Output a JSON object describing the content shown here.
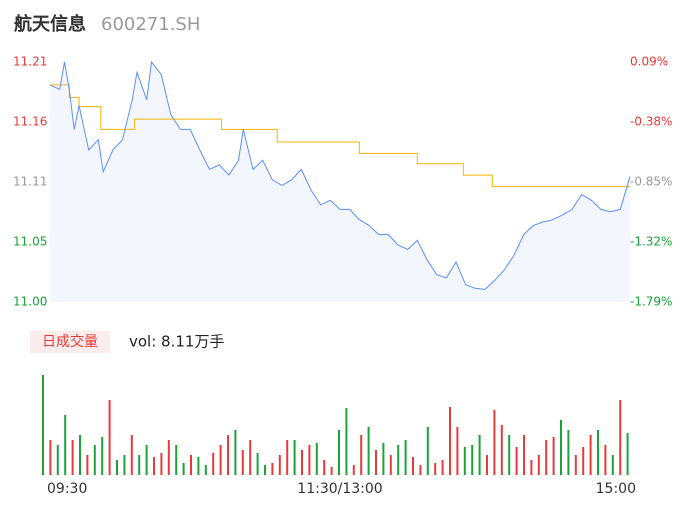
{
  "chart_data": {
    "type": "intraday",
    "title": "航天信息",
    "subtitle": "600271.SH",
    "xlim": [
      0,
      240
    ],
    "xticks": [
      {
        "value": 0,
        "label": "09:30"
      },
      {
        "value": 120,
        "label": "11:30/13:00"
      },
      {
        "value": 240,
        "label": "15:00"
      }
    ],
    "ylim": [
      11.0,
      11.21
    ],
    "yticks": [
      {
        "value": 11.21,
        "label": "11.21"
      },
      {
        "value": 11.1575,
        "label": "11.16"
      },
      {
        "value": 11.105,
        "label": "11.11"
      },
      {
        "value": 11.0525,
        "label": "11.05"
      },
      {
        "value": 11.0,
        "label": "11.00"
      }
    ],
    "ytick_colors": [
      "#e83a3a",
      "#e83a3a",
      "#999999",
      "#1aa33a",
      "#1aa33a"
    ],
    "y2lim": [
      -1.79,
      0.09
    ],
    "y2ticks": [
      {
        "value": 0.09,
        "label": "0.09%"
      },
      {
        "value": -0.38,
        "label": "-0.38%"
      },
      {
        "value": -0.85,
        "label": "-0.85%"
      },
      {
        "value": -1.32,
        "label": "-1.32%"
      },
      {
        "value": -1.79,
        "label": "-1.79%"
      }
    ],
    "series": [
      {
        "color": "#5b8ff9",
        "style": "line",
        "x": [
          0,
          4,
          6,
          8,
          10,
          12,
          16,
          20,
          22,
          26,
          30,
          34,
          36,
          40,
          42,
          46,
          50,
          54,
          58,
          62,
          66,
          70,
          74,
          78,
          80,
          84,
          88,
          92,
          96,
          100,
          104,
          108,
          112,
          116,
          120,
          124,
          128,
          132,
          136,
          140,
          144,
          148,
          152,
          156,
          160,
          164,
          168,
          172,
          176,
          180,
          184,
          188,
          192,
          196,
          200,
          204,
          208,
          212,
          216,
          220,
          224,
          228,
          232,
          236,
          240
        ],
        "values": [
          11.19,
          11.186,
          11.21,
          11.186,
          11.151,
          11.172,
          11.133,
          11.142,
          11.114,
          11.133,
          11.142,
          11.177,
          11.201,
          11.177,
          11.21,
          11.199,
          11.164,
          11.151,
          11.151,
          11.133,
          11.116,
          11.12,
          11.111,
          11.124,
          11.151,
          11.116,
          11.124,
          11.107,
          11.102,
          11.107,
          11.116,
          11.098,
          11.085,
          11.089,
          11.081,
          11.081,
          11.072,
          11.067,
          11.059,
          11.059,
          11.05,
          11.046,
          11.054,
          11.037,
          11.024,
          11.021,
          11.035,
          11.015,
          11.012,
          11.011,
          11.019,
          11.028,
          11.041,
          11.059,
          11.067,
          11.07,
          11.072,
          11.076,
          11.081,
          11.094,
          11.089,
          11.081,
          11.079,
          11.081,
          11.11
        ]
      },
      {
        "color": "#f5b400",
        "style": "step",
        "x": [
          0,
          8,
          12,
          21,
          35,
          71,
          94,
          128,
          152,
          171,
          183
        ],
        "values": [
          11.19,
          11.179,
          11.171,
          11.151,
          11.16,
          11.151,
          11.14,
          11.13,
          11.121,
          11.111,
          11.101
        ]
      }
    ],
    "volume": {
      "label": "日成交量",
      "summary": "vol: 8.11万手",
      "ylim": [
        0,
        100
      ],
      "values": [
        100,
        35,
        30,
        60,
        35,
        40,
        20,
        30,
        38,
        75,
        15,
        20,
        40,
        20,
        30,
        18,
        22,
        35,
        30,
        12,
        20,
        18,
        10,
        22,
        30,
        40,
        45,
        25,
        35,
        22,
        10,
        12,
        20,
        35,
        35,
        25,
        30,
        32,
        15,
        8,
        45,
        67,
        10,
        40,
        48,
        25,
        32,
        20,
        30,
        35,
        18,
        10,
        48,
        12,
        15,
        68,
        48,
        28,
        30,
        40,
        20,
        65,
        50,
        40,
        28,
        40,
        15,
        20,
        35,
        38,
        55,
        45,
        20,
        28,
        40,
        45,
        30,
        20,
        75,
        42
      ],
      "colors": [
        "#1aa33a",
        "#e83a3a",
        "#1aa33a",
        "#1aa33a",
        "#e83a3a",
        "#1aa33a",
        "#e83a3a",
        "#1aa33a",
        "#1aa33a",
        "#e83a3a",
        "#1aa33a",
        "#1aa33a",
        "#e83a3a",
        "#1aa33a",
        "#1aa33a",
        "#e83a3a",
        "#e83a3a",
        "#e83a3a",
        "#1aa33a",
        "#1aa33a",
        "#e83a3a",
        "#1aa33a",
        "#1aa33a",
        "#e83a3a",
        "#e83a3a",
        "#e83a3a",
        "#1aa33a",
        "#e83a3a",
        "#e83a3a",
        "#1aa33a",
        "#1aa33a",
        "#e83a3a",
        "#e83a3a",
        "#e83a3a",
        "#1aa33a",
        "#e83a3a",
        "#e83a3a",
        "#1aa33a",
        "#e83a3a",
        "#e83a3a",
        "#1aa33a",
        "#1aa33a",
        "#e83a3a",
        "#e83a3a",
        "#1aa33a",
        "#e83a3a",
        "#1aa33a",
        "#e83a3a",
        "#1aa33a",
        "#1aa33a",
        "#e83a3a",
        "#e83a3a",
        "#1aa33a",
        "#e83a3a",
        "#e83a3a",
        "#e83a3a",
        "#e83a3a",
        "#1aa33a",
        "#1aa33a",
        "#1aa33a",
        "#e83a3a",
        "#e83a3a",
        "#e83a3a",
        "#1aa33a",
        "#e83a3a",
        "#e83a3a",
        "#e83a3a",
        "#e83a3a",
        "#e83a3a",
        "#e83a3a",
        "#1aa33a",
        "#1aa33a",
        "#e83a3a",
        "#e83a3a",
        "#e83a3a",
        "#1aa33a",
        "#e83a3a",
        "#1aa33a",
        "#e83a3a",
        "#1aa33a"
      ]
    }
  }
}
